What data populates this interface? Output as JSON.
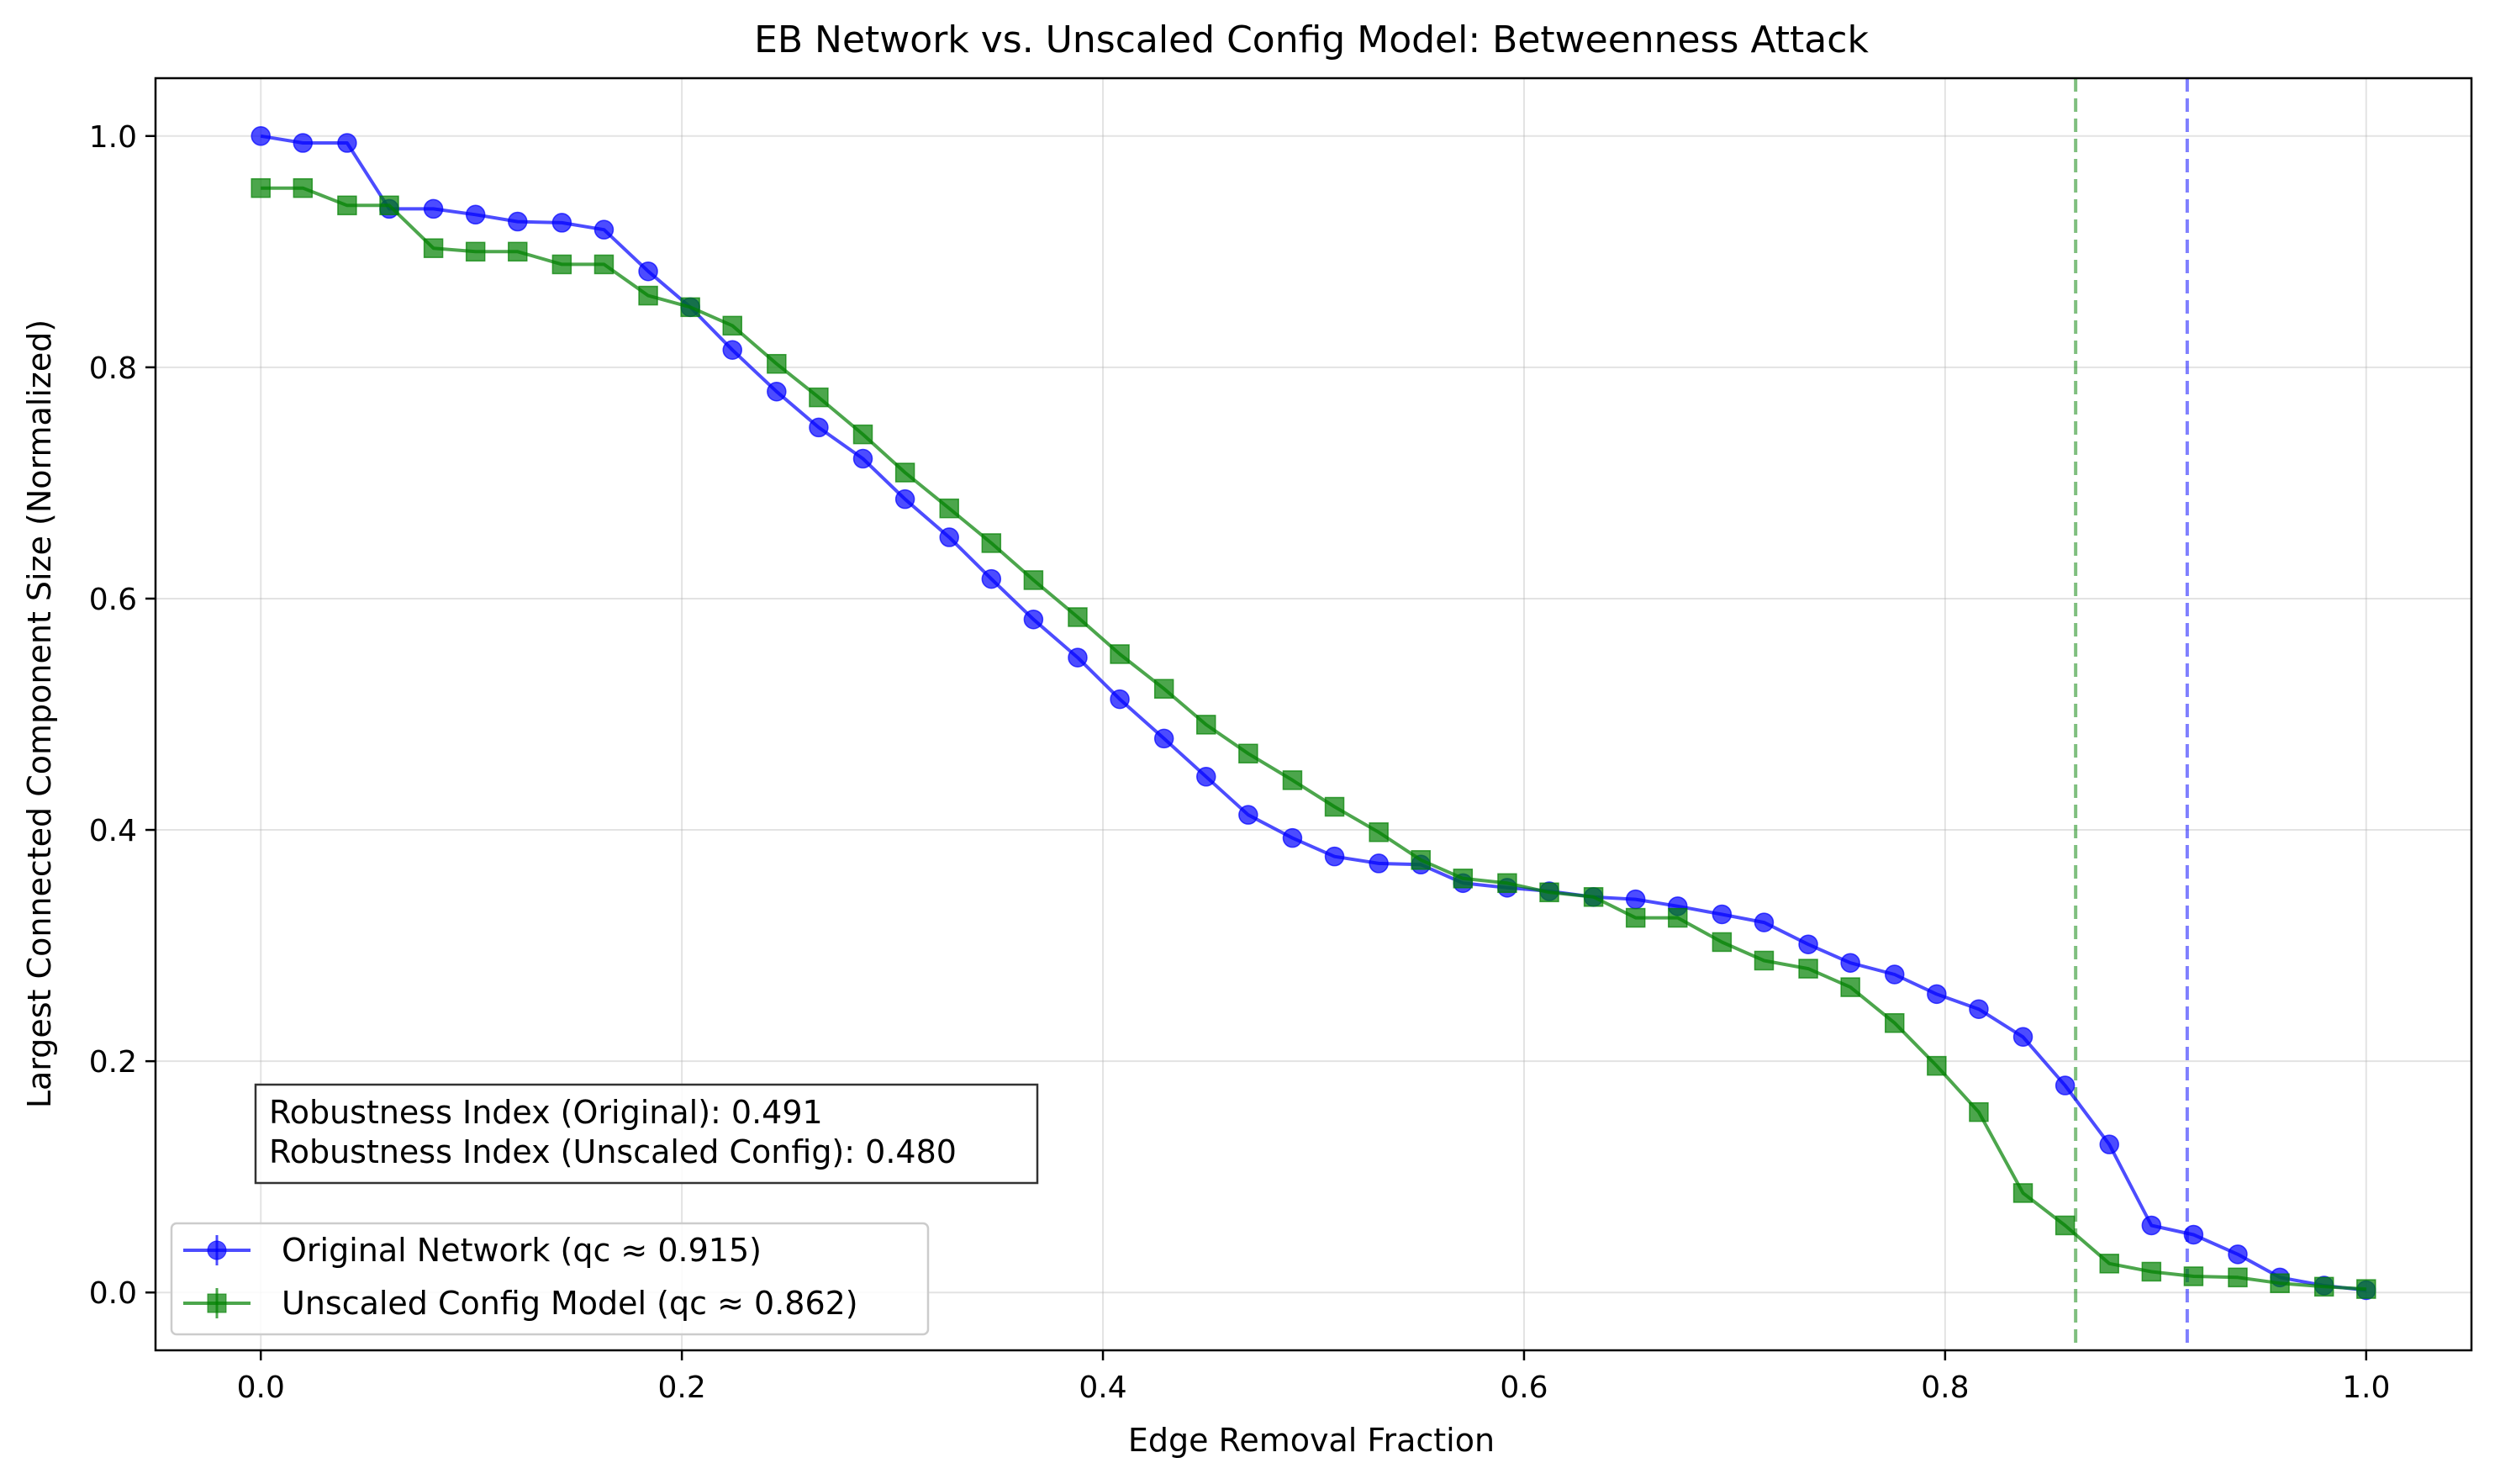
{
  "chart_data": {
    "type": "line",
    "title": "EB Network vs. Unscaled Config Model: Betweenness Attack",
    "xlabel": "Edge Removal Fraction",
    "ylabel": "Largest Connected Component Size (Normalized)",
    "xlim": [
      -0.05,
      1.05
    ],
    "ylim": [
      -0.05,
      1.05
    ],
    "xticks": [
      "0.0",
      "0.2",
      "0.4",
      "0.6",
      "0.8",
      "1.0"
    ],
    "yticks": [
      "0.0",
      "0.2",
      "0.4",
      "0.6",
      "0.8",
      "1.0"
    ],
    "grid": true,
    "legend_position": "lower-left",
    "x": [
      0.0,
      0.02,
      0.041,
      0.061,
      0.082,
      0.102,
      0.122,
      0.143,
      0.163,
      0.184,
      0.204,
      0.224,
      0.245,
      0.265,
      0.286,
      0.306,
      0.327,
      0.347,
      0.367,
      0.388,
      0.408,
      0.429,
      0.449,
      0.469,
      0.49,
      0.51,
      0.531,
      0.551,
      0.571,
      0.592,
      0.612,
      0.633,
      0.653,
      0.673,
      0.694,
      0.714,
      0.735,
      0.755,
      0.776,
      0.796,
      0.816,
      0.837,
      0.857,
      0.878,
      0.898,
      0.918,
      0.939,
      0.959,
      0.98,
      1.0
    ],
    "series": [
      {
        "name": "Original Network (qc ≈ 0.915)",
        "color": "#0000ff",
        "marker": "circle",
        "critical_x": 0.915,
        "values": [
          1.0,
          0.994,
          0.994,
          0.937,
          0.937,
          0.932,
          0.926,
          0.925,
          0.919,
          0.883,
          0.852,
          0.815,
          0.779,
          0.748,
          0.721,
          0.686,
          0.653,
          0.617,
          0.582,
          0.549,
          0.513,
          0.479,
          0.446,
          0.413,
          0.393,
          0.377,
          0.371,
          0.37,
          0.354,
          0.35,
          0.347,
          0.342,
          0.34,
          0.334,
          0.327,
          0.32,
          0.301,
          0.285,
          0.275,
          0.258,
          0.245,
          0.221,
          0.179,
          0.128,
          0.058,
          0.05,
          0.033,
          0.013,
          0.006,
          0.002
        ]
      },
      {
        "name": "Unscaled Config Model (qc ≈ 0.862)",
        "color": "#008000",
        "marker": "square",
        "critical_x": 0.862,
        "values": [
          0.955,
          0.955,
          0.94,
          0.94,
          0.903,
          0.9,
          0.9,
          0.889,
          0.889,
          0.862,
          0.852,
          0.836,
          0.803,
          0.774,
          0.742,
          0.709,
          0.678,
          0.648,
          0.616,
          0.584,
          0.552,
          0.522,
          0.491,
          0.466,
          0.443,
          0.42,
          0.398,
          0.374,
          0.358,
          0.354,
          0.346,
          0.342,
          0.324,
          0.324,
          0.303,
          0.287,
          0.28,
          0.264,
          0.233,
          0.196,
          0.156,
          0.086,
          0.058,
          0.025,
          0.018,
          0.014,
          0.013,
          0.008,
          0.005,
          0.003
        ]
      }
    ],
    "annotation": {
      "line1": "Robustness Index (Original): 0.491",
      "line2": "Robustness Index (Unscaled Config): 0.480"
    }
  }
}
